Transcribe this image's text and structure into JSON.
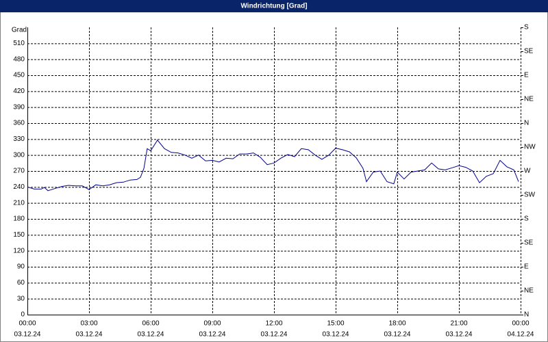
{
  "chart_data": {
    "type": "line",
    "title": "Windrichtung [Grad]",
    "y_label": "Grad",
    "x": [
      0,
      0.33,
      0.67,
      0.83,
      1,
      1.33,
      1.67,
      2,
      2.33,
      2.67,
      3,
      3.33,
      3.67,
      4,
      4.33,
      4.67,
      5,
      5.33,
      5.5,
      5.67,
      5.83,
      6,
      6.33,
      6.67,
      7,
      7.33,
      7.67,
      8,
      8.33,
      8.67,
      9,
      9.33,
      9.67,
      10,
      10.33,
      10.67,
      11,
      11.33,
      11.67,
      12,
      12.33,
      12.67,
      13,
      13.33,
      13.67,
      14,
      14.33,
      14.67,
      15,
      15.33,
      15.67,
      16,
      16.33,
      16.5,
      16.83,
      17.17,
      17.5,
      17.83,
      18,
      18.33,
      18.67,
      19,
      19.33,
      19.67,
      20,
      20.33,
      20.67,
      21,
      21.33,
      21.67,
      22,
      22.33,
      22.67,
      23,
      23.33,
      23.67,
      23.9
    ],
    "series": [
      {
        "name": "Windrichtung",
        "color": "#00008b",
        "values": [
          240,
          236,
          236,
          239,
          233,
          237,
          241,
          243,
          242,
          242,
          235,
          244,
          242,
          244,
          248,
          249,
          253,
          254,
          258,
          275,
          312,
          308,
          328,
          312,
          305,
          304,
          300,
          294,
          300,
          289,
          290,
          287,
          294,
          293,
          302,
          302,
          304,
          296,
          282,
          285,
          294,
          301,
          297,
          312,
          310,
          300,
          292,
          300,
          313,
          310,
          306,
          295,
          275,
          250,
          268,
          270,
          250,
          246,
          268,
          255,
          268,
          270,
          272,
          285,
          274,
          272,
          276,
          280,
          277,
          270,
          248,
          260,
          265,
          290,
          278,
          272,
          250
        ]
      }
    ],
    "xlim": [
      0,
      24
    ],
    "xticks": [
      {
        "value": 0,
        "label": "00:00",
        "date": "03.12.24"
      },
      {
        "value": 3,
        "label": "03:00",
        "date": "03.12.24"
      },
      {
        "value": 6,
        "label": "06:00",
        "date": "03.12.24"
      },
      {
        "value": 9,
        "label": "09:00",
        "date": "03.12.24"
      },
      {
        "value": 12,
        "label": "12:00",
        "date": "03.12.24"
      },
      {
        "value": 15,
        "label": "15:00",
        "date": "03.12.24"
      },
      {
        "value": 18,
        "label": "18:00",
        "date": "03.12.24"
      },
      {
        "value": 21,
        "label": "21:00",
        "date": "03.12.24"
      },
      {
        "value": 24,
        "label": "00:00",
        "date": "04.12.24"
      }
    ],
    "ylim": [
      0,
      540
    ],
    "yticks": [
      0,
      30,
      60,
      90,
      120,
      150,
      180,
      210,
      240,
      270,
      300,
      330,
      360,
      390,
      420,
      450,
      480,
      510
    ],
    "y2lim": [
      0,
      540
    ],
    "y2ticks": [
      {
        "value": 540,
        "label": "S"
      },
      {
        "value": 495,
        "label": "SE"
      },
      {
        "value": 450,
        "label": "E"
      },
      {
        "value": 405,
        "label": "NE"
      },
      {
        "value": 360,
        "label": "N"
      },
      {
        "value": 315,
        "label": "NW"
      },
      {
        "value": 270,
        "label": "W"
      },
      {
        "value": 225,
        "label": "SW"
      },
      {
        "value": 180,
        "label": "S"
      },
      {
        "value": 135,
        "label": "SE"
      },
      {
        "value": 90,
        "label": "E"
      },
      {
        "value": 45,
        "label": "NE"
      },
      {
        "value": 0,
        "label": "N"
      }
    ],
    "grid": true
  }
}
